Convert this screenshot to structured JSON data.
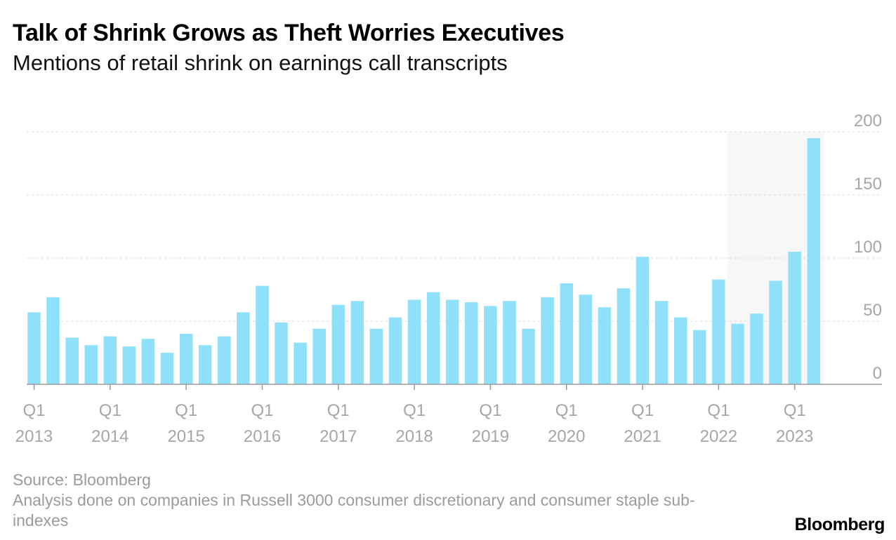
{
  "header": {
    "title": "Talk of Shrink Grows as Theft Worries Executives",
    "subtitle": "Mentions of retail shrink on earnings call transcripts"
  },
  "footer": {
    "source": "Source: Bloomberg",
    "note": "Analysis done on companies in Russell 3000 consumer discretionary and consumer staple sub-indexes",
    "logo": "Bloomberg"
  },
  "chart_data": {
    "type": "bar",
    "title": "Talk of Shrink Grows as Theft Worries Executives",
    "subtitle": "Mentions of retail shrink on earnings call transcripts",
    "xlabel": "",
    "ylabel": "",
    "ylim": [
      0,
      200
    ],
    "yticks": [
      0,
      50,
      100,
      150,
      200
    ],
    "y_axis_side": "right",
    "grid": "horizontal dotted",
    "bar_color": "#8fe0fb",
    "highlight_color": "#f7f7f7",
    "highlight_from_index": 37,
    "categories": [
      "Q1 2013",
      "Q2 2013",
      "Q3 2013",
      "Q4 2013",
      "Q1 2014",
      "Q2 2014",
      "Q3 2014",
      "Q4 2014",
      "Q1 2015",
      "Q2 2015",
      "Q3 2015",
      "Q4 2015",
      "Q1 2016",
      "Q2 2016",
      "Q3 2016",
      "Q4 2016",
      "Q1 2017",
      "Q2 2017",
      "Q3 2017",
      "Q4 2017",
      "Q1 2018",
      "Q2 2018",
      "Q3 2018",
      "Q4 2018",
      "Q1 2019",
      "Q2 2019",
      "Q3 2019",
      "Q4 2019",
      "Q1 2020",
      "Q2 2020",
      "Q3 2020",
      "Q4 2020",
      "Q1 2021",
      "Q2 2021",
      "Q3 2021",
      "Q4 2021",
      "Q1 2022",
      "Q2 2022",
      "Q3 2022",
      "Q4 2022",
      "Q1 2023",
      "Q2 2023"
    ],
    "values": [
      57,
      69,
      37,
      31,
      38,
      30,
      36,
      25,
      40,
      31,
      38,
      57,
      78,
      49,
      33,
      44,
      63,
      66,
      44,
      53,
      67,
      73,
      67,
      65,
      62,
      66,
      44,
      69,
      80,
      71,
      61,
      76,
      101,
      66,
      53,
      43,
      83,
      48,
      56,
      82,
      105,
      195
    ],
    "x_tick_labels": [
      {
        "index": 0,
        "q": "Q1",
        "year": "2013"
      },
      {
        "index": 4,
        "q": "Q1",
        "year": "2014"
      },
      {
        "index": 8,
        "q": "Q1",
        "year": "2015"
      },
      {
        "index": 12,
        "q": "Q1",
        "year": "2016"
      },
      {
        "index": 16,
        "q": "Q1",
        "year": "2017"
      },
      {
        "index": 20,
        "q": "Q1",
        "year": "2018"
      },
      {
        "index": 24,
        "q": "Q1",
        "year": "2019"
      },
      {
        "index": 28,
        "q": "Q1",
        "year": "2020"
      },
      {
        "index": 32,
        "q": "Q1",
        "year": "2021"
      },
      {
        "index": 36,
        "q": "Q1",
        "year": "2022"
      },
      {
        "index": 40,
        "q": "Q1",
        "year": "2023"
      }
    ]
  }
}
